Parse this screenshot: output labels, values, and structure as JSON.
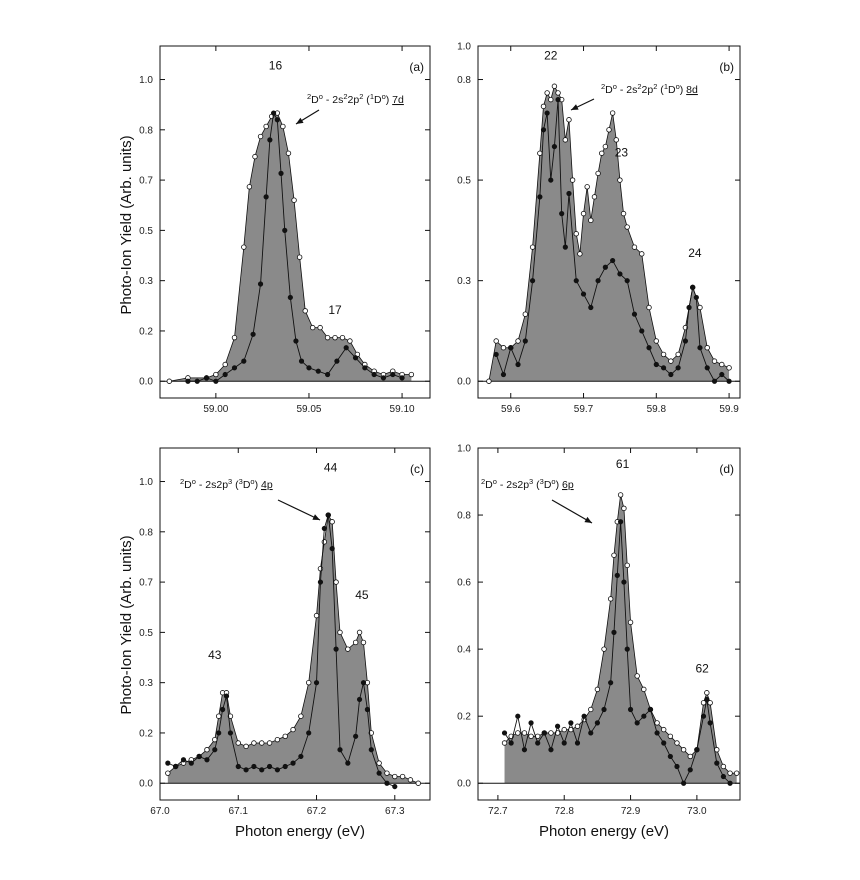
{
  "chart_data": [
    {
      "type": "line",
      "panel_label": "(a)",
      "xlim": [
        58.97,
        59.115
      ],
      "ylim": [
        -0.05,
        1.0
      ],
      "xticks": [
        "59.00",
        "59.05",
        "59.10"
      ],
      "xtick_values": [
        59.0,
        59.05,
        59.1
      ],
      "yticks": [
        "0.0",
        "0.2",
        "0.3",
        "0.5",
        "0.7",
        "0.8",
        "1.0"
      ],
      "ytick_values": [
        0.0,
        0.15,
        0.3,
        0.45,
        0.6,
        0.75,
        0.9
      ],
      "annotation": {
        "prefix": "D",
        "prefix_sup": "2",
        "o": "o",
        "text1": " - 2s",
        "sup1": "2",
        "text2": "2p",
        "sup2": "2",
        "text3": " (",
        "sup3": "1",
        "text4": "D",
        "o2": "o",
        "text5": ") ",
        "underlined": "7d"
      },
      "peaks": [
        {
          "label": "16",
          "x": 59.032,
          "y": 0.93
        },
        {
          "label": "17",
          "x": 59.064,
          "y": 0.2
        }
      ],
      "series": [
        {
          "style": "open",
          "x": [
            58.975,
            58.985,
            58.995,
            59.0,
            59.005,
            59.01,
            59.015,
            59.018,
            59.021,
            59.024,
            59.027,
            59.03,
            59.033,
            59.036,
            59.039,
            59.042,
            59.045,
            59.048,
            59.052,
            59.056,
            59.06,
            59.064,
            59.068,
            59.072,
            59.076,
            59.08,
            59.085,
            59.09,
            59.095,
            59.1,
            59.105
          ],
          "y": [
            0.0,
            0.01,
            0.01,
            0.02,
            0.05,
            0.13,
            0.4,
            0.58,
            0.67,
            0.73,
            0.76,
            0.79,
            0.8,
            0.76,
            0.68,
            0.54,
            0.37,
            0.21,
            0.16,
            0.16,
            0.13,
            0.13,
            0.13,
            0.12,
            0.08,
            0.05,
            0.03,
            0.02,
            0.03,
            0.02,
            0.02
          ]
        },
        {
          "style": "filled",
          "x": [
            58.985,
            58.99,
            58.995,
            59.0,
            59.005,
            59.01,
            59.015,
            59.02,
            59.024,
            59.027,
            59.029,
            59.031,
            59.033,
            59.035,
            59.037,
            59.04,
            59.043,
            59.046,
            59.05,
            59.055,
            59.06,
            59.065,
            59.07,
            59.075,
            59.08,
            59.085,
            59.09,
            59.095,
            59.1
          ],
          "y": [
            0.0,
            0.0,
            0.01,
            0.0,
            0.02,
            0.04,
            0.06,
            0.14,
            0.29,
            0.55,
            0.72,
            0.8,
            0.78,
            0.62,
            0.45,
            0.25,
            0.12,
            0.06,
            0.04,
            0.03,
            0.02,
            0.06,
            0.1,
            0.07,
            0.04,
            0.02,
            0.01,
            0.02,
            0.01
          ]
        }
      ]
    },
    {
      "type": "line",
      "panel_label": "(b)",
      "xlim": [
        59.555,
        59.915
      ],
      "ylim": [
        -0.05,
        1.0
      ],
      "xticks": [
        "59.6",
        "59.7",
        "59.8",
        "59.9"
      ],
      "xtick_values": [
        59.6,
        59.7,
        59.8,
        59.9
      ],
      "yticks": [
        "0.0",
        "0.3",
        "0.5",
        "0.8",
        "1.0"
      ],
      "ytick_values": [
        0.0,
        0.3,
        0.6,
        0.9,
        1.0
      ],
      "annotation": {
        "prefix": "D",
        "prefix_sup": "2",
        "o": "o",
        "text1": " - 2s",
        "sup1": "2",
        "text2": "2p",
        "sup2": "2",
        "text3": " (",
        "sup3": "1",
        "text4": "D",
        "o2": "o",
        "text5": ") ",
        "underlined": "8d"
      },
      "peaks": [
        {
          "label": "22",
          "x": 59.655,
          "y": 0.96
        },
        {
          "label": "23",
          "x": 59.752,
          "y": 0.67
        },
        {
          "label": "24",
          "x": 59.853,
          "y": 0.37
        }
      ],
      "series": [
        {
          "style": "open",
          "x": [
            59.57,
            59.58,
            59.59,
            59.6,
            59.61,
            59.62,
            59.63,
            59.64,
            59.645,
            59.65,
            59.655,
            59.66,
            59.665,
            59.67,
            59.675,
            59.68,
            59.685,
            59.69,
            59.695,
            59.7,
            59.705,
            59.71,
            59.715,
            59.72,
            59.725,
            59.73,
            59.735,
            59.74,
            59.745,
            59.75,
            59.755,
            59.76,
            59.77,
            59.78,
            59.79,
            59.8,
            59.81,
            59.82,
            59.83,
            59.84,
            59.85,
            59.86,
            59.87,
            59.88,
            59.89,
            59.9
          ],
          "y": [
            0.0,
            0.12,
            0.1,
            0.1,
            0.12,
            0.2,
            0.4,
            0.68,
            0.82,
            0.86,
            0.84,
            0.88,
            0.86,
            0.84,
            0.72,
            0.78,
            0.6,
            0.44,
            0.38,
            0.5,
            0.58,
            0.48,
            0.55,
            0.62,
            0.68,
            0.7,
            0.75,
            0.8,
            0.72,
            0.6,
            0.5,
            0.46,
            0.4,
            0.38,
            0.22,
            0.12,
            0.08,
            0.06,
            0.08,
            0.16,
            0.28,
            0.22,
            0.1,
            0.06,
            0.05,
            0.04
          ]
        },
        {
          "style": "filled",
          "x": [
            59.58,
            59.59,
            59.6,
            59.61,
            59.62,
            59.63,
            59.64,
            59.645,
            59.65,
            59.655,
            59.66,
            59.665,
            59.67,
            59.675,
            59.68,
            59.69,
            59.7,
            59.71,
            59.72,
            59.73,
            59.74,
            59.75,
            59.76,
            59.77,
            59.78,
            59.79,
            59.8,
            59.81,
            59.82,
            59.83,
            59.84,
            59.845,
            59.85,
            59.855,
            59.86,
            59.87,
            59.88,
            59.89,
            59.9
          ],
          "y": [
            0.08,
            0.02,
            0.1,
            0.05,
            0.12,
            0.3,
            0.55,
            0.75,
            0.8,
            0.6,
            0.7,
            0.84,
            0.5,
            0.4,
            0.56,
            0.3,
            0.26,
            0.22,
            0.3,
            0.34,
            0.36,
            0.32,
            0.3,
            0.2,
            0.15,
            0.1,
            0.05,
            0.04,
            0.02,
            0.04,
            0.12,
            0.22,
            0.28,
            0.25,
            0.1,
            0.04,
            0.0,
            0.02,
            0.0
          ]
        }
      ]
    },
    {
      "type": "line",
      "panel_label": "(c)",
      "xlim": [
        67.0,
        67.345
      ],
      "ylim": [
        -0.05,
        1.0
      ],
      "xticks": [
        "67.0",
        "67.1",
        "67.2",
        "67.3"
      ],
      "xtick_values": [
        67.0,
        67.1,
        67.2,
        67.3
      ],
      "yticks": [
        "0.0",
        "0.2",
        "0.3",
        "0.5",
        "0.7",
        "0.8",
        "1.0"
      ],
      "ytick_values": [
        0.0,
        0.15,
        0.3,
        0.45,
        0.6,
        0.75,
        0.9
      ],
      "annotation": {
        "prefix": "D",
        "prefix_sup": "2",
        "o": "o",
        "text1": " - 2s2p",
        "sup1": "3",
        "text2": "",
        "sup2": "",
        "text3": " (",
        "sup3": "3",
        "text4": "D",
        "o2": "o",
        "text5": ") ",
        "underlined": "4p"
      },
      "peaks": [
        {
          "label": "43",
          "x": 67.07,
          "y": 0.37
        },
        {
          "label": "44",
          "x": 67.218,
          "y": 0.93
        },
        {
          "label": "45",
          "x": 67.258,
          "y": 0.55
        }
      ],
      "series": [
        {
          "style": "open",
          "x": [
            67.01,
            67.02,
            67.03,
            67.04,
            67.05,
            67.06,
            67.07,
            67.075,
            67.08,
            67.085,
            67.09,
            67.1,
            67.11,
            67.12,
            67.13,
            67.14,
            67.15,
            67.16,
            67.17,
            67.18,
            67.19,
            67.2,
            67.205,
            67.21,
            67.215,
            67.22,
            67.225,
            67.23,
            67.24,
            67.25,
            67.255,
            67.26,
            67.265,
            67.27,
            67.28,
            67.29,
            67.3,
            67.31,
            67.32,
            67.33
          ],
          "y": [
            0.03,
            0.05,
            0.06,
            0.07,
            0.08,
            0.1,
            0.13,
            0.2,
            0.27,
            0.27,
            0.2,
            0.12,
            0.11,
            0.12,
            0.12,
            0.12,
            0.13,
            0.14,
            0.16,
            0.2,
            0.3,
            0.5,
            0.64,
            0.72,
            0.8,
            0.78,
            0.6,
            0.45,
            0.4,
            0.42,
            0.45,
            0.42,
            0.3,
            0.15,
            0.06,
            0.03,
            0.02,
            0.02,
            0.01,
            0.0
          ]
        },
        {
          "style": "filled",
          "x": [
            67.01,
            67.02,
            67.03,
            67.04,
            67.05,
            67.06,
            67.07,
            67.075,
            67.08,
            67.085,
            67.09,
            67.1,
            67.11,
            67.12,
            67.13,
            67.14,
            67.15,
            67.16,
            67.17,
            67.18,
            67.19,
            67.2,
            67.205,
            67.21,
            67.215,
            67.22,
            67.225,
            67.23,
            67.24,
            67.25,
            67.255,
            67.26,
            67.265,
            67.27,
            67.28,
            67.29,
            67.3
          ],
          "y": [
            0.06,
            0.05,
            0.07,
            0.06,
            0.08,
            0.07,
            0.1,
            0.15,
            0.22,
            0.26,
            0.15,
            0.05,
            0.04,
            0.05,
            0.04,
            0.05,
            0.04,
            0.05,
            0.06,
            0.08,
            0.15,
            0.3,
            0.6,
            0.76,
            0.8,
            0.7,
            0.4,
            0.1,
            0.06,
            0.14,
            0.25,
            0.3,
            0.22,
            0.1,
            0.03,
            0.0,
            -0.01
          ]
        }
      ]
    },
    {
      "type": "line",
      "panel_label": "(d)",
      "xlim": [
        72.67,
        73.065
      ],
      "ylim": [
        -0.05,
        1.0
      ],
      "xticks": [
        "72.7",
        "72.8",
        "72.9",
        "73.0"
      ],
      "xtick_values": [
        72.7,
        72.8,
        72.9,
        73.0
      ],
      "yticks": [
        "0.0",
        "0.2",
        "0.4",
        "0.6",
        "0.8",
        "1.0"
      ],
      "ytick_values": [
        0.0,
        0.2,
        0.4,
        0.6,
        0.8,
        1.0
      ],
      "annotation": {
        "prefix": "D",
        "prefix_sup": "2",
        "o": "o",
        "text1": " - 2s2p",
        "sup1": "3",
        "text2": "",
        "sup2": "",
        "text3": " (",
        "sup3": "3",
        "text4": "D",
        "o2": "o",
        "text5": ") ",
        "underlined": "6p"
      },
      "peaks": [
        {
          "label": "61",
          "x": 72.888,
          "y": 0.94
        },
        {
          "label": "62",
          "x": 73.008,
          "y": 0.33
        }
      ],
      "series": [
        {
          "style": "open",
          "x": [
            72.71,
            72.72,
            72.73,
            72.74,
            72.75,
            72.76,
            72.77,
            72.78,
            72.79,
            72.8,
            72.81,
            72.82,
            72.83,
            72.84,
            72.85,
            72.86,
            72.87,
            72.875,
            72.88,
            72.885,
            72.89,
            72.895,
            72.9,
            72.91,
            72.92,
            72.93,
            72.94,
            72.95,
            72.96,
            72.97,
            72.98,
            72.99,
            73.0,
            73.01,
            73.015,
            73.02,
            73.03,
            73.04,
            73.05,
            73.06
          ],
          "y": [
            0.12,
            0.14,
            0.15,
            0.15,
            0.14,
            0.14,
            0.15,
            0.15,
            0.15,
            0.16,
            0.16,
            0.17,
            0.19,
            0.22,
            0.28,
            0.4,
            0.55,
            0.68,
            0.78,
            0.86,
            0.82,
            0.65,
            0.48,
            0.32,
            0.28,
            0.22,
            0.18,
            0.16,
            0.14,
            0.12,
            0.1,
            0.08,
            0.1,
            0.24,
            0.27,
            0.24,
            0.1,
            0.05,
            0.03,
            0.03
          ]
        },
        {
          "style": "filled",
          "x": [
            72.71,
            72.72,
            72.73,
            72.74,
            72.75,
            72.76,
            72.77,
            72.78,
            72.79,
            72.8,
            72.81,
            72.82,
            72.83,
            72.84,
            72.85,
            72.86,
            72.87,
            72.875,
            72.88,
            72.885,
            72.89,
            72.895,
            72.9,
            72.91,
            72.92,
            72.93,
            72.94,
            72.95,
            72.96,
            72.97,
            72.98,
            72.99,
            73.0,
            73.01,
            73.015,
            73.02,
            73.03,
            73.04,
            73.05
          ],
          "y": [
            0.15,
            0.12,
            0.2,
            0.1,
            0.18,
            0.12,
            0.15,
            0.1,
            0.17,
            0.12,
            0.18,
            0.12,
            0.2,
            0.15,
            0.18,
            0.22,
            0.3,
            0.45,
            0.62,
            0.78,
            0.6,
            0.4,
            0.22,
            0.18,
            0.2,
            0.22,
            0.15,
            0.12,
            0.08,
            0.05,
            0.0,
            0.04,
            0.1,
            0.2,
            0.25,
            0.18,
            0.06,
            0.02,
            0.0
          ]
        }
      ]
    }
  ],
  "y_axis_label": "Photo-Ion Yield (Arb. units)",
  "x_axis_label": "Photon energy (eV)",
  "colors": {
    "fill": "#8a8a8a",
    "line": "#111111",
    "open_marker": "#ffffff",
    "filled_marker": "#111111"
  }
}
